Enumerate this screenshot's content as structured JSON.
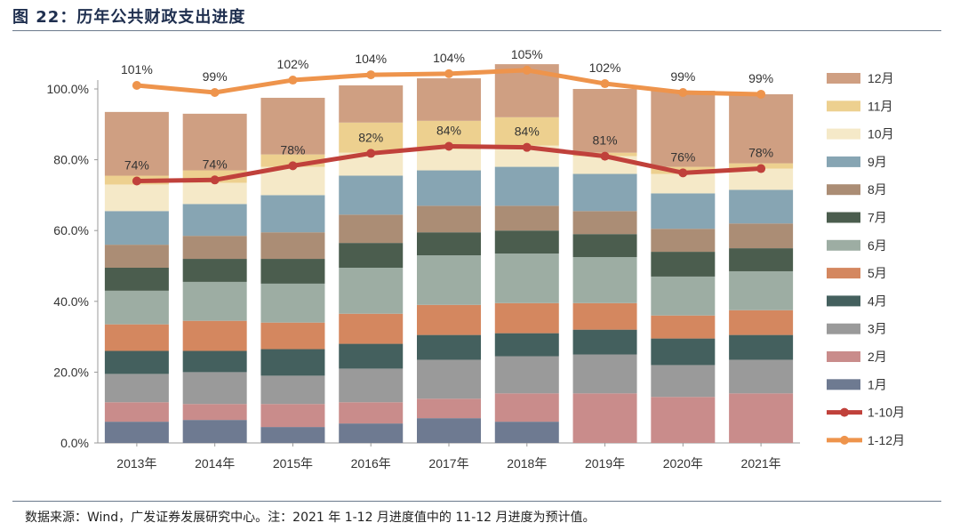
{
  "figure": {
    "title": "图 22：历年公共财政支出进度",
    "source": "数据来源：Wind，广发证券发展研究中心。注：2021 年 1-12 月进度值中的 11-12 月进度为预计值。"
  },
  "chart_data": {
    "type": "bar",
    "stacked": true,
    "title": "历年公共财政支出进度",
    "xlabel": "",
    "ylabel": "",
    "ylim": [
      0,
      1.05
    ],
    "yticks": [
      0,
      0.2,
      0.4,
      0.6,
      0.8,
      1.0
    ],
    "ytick_labels": [
      "0.0%",
      "20.0%",
      "40.0%",
      "60.0%",
      "80.0%",
      "100.0%"
    ],
    "categories": [
      "2013年",
      "2014年",
      "2015年",
      "2016年",
      "2017年",
      "2018年",
      "2019年",
      "2020年",
      "2021年"
    ],
    "series": [
      {
        "name": "1月",
        "color": "#6e7a91",
        "values": [
          0.06,
          0.065,
          0.045,
          0.055,
          0.07,
          0.06,
          0.0,
          0.0,
          0.0
        ]
      },
      {
        "name": "2月",
        "color": "#c98c8b",
        "values": [
          0.055,
          0.045,
          0.065,
          0.06,
          0.055,
          0.08,
          0.14,
          0.13,
          0.14
        ]
      },
      {
        "name": "3月",
        "color": "#9a9a9a",
        "values": [
          0.08,
          0.09,
          0.08,
          0.095,
          0.11,
          0.105,
          0.11,
          0.09,
          0.095
        ]
      },
      {
        "name": "4月",
        "color": "#44605e",
        "values": [
          0.065,
          0.06,
          0.075,
          0.07,
          0.07,
          0.065,
          0.07,
          0.075,
          0.07
        ]
      },
      {
        "name": "5月",
        "color": "#d4875f",
        "values": [
          0.075,
          0.085,
          0.075,
          0.085,
          0.085,
          0.085,
          0.075,
          0.065,
          0.07
        ]
      },
      {
        "name": "6月",
        "color": "#9dada3",
        "values": [
          0.095,
          0.11,
          0.11,
          0.13,
          0.14,
          0.14,
          0.13,
          0.11,
          0.11
        ]
      },
      {
        "name": "7月",
        "color": "#4b5d4e",
        "values": [
          0.065,
          0.065,
          0.07,
          0.07,
          0.065,
          0.065,
          0.065,
          0.07,
          0.065
        ]
      },
      {
        "name": "8月",
        "color": "#ab8d75",
        "values": [
          0.065,
          0.065,
          0.075,
          0.08,
          0.075,
          0.07,
          0.065,
          0.065,
          0.07
        ]
      },
      {
        "name": "9月",
        "color": "#87a5b3",
        "values": [
          0.095,
          0.09,
          0.105,
          0.11,
          0.1,
          0.11,
          0.105,
          0.1,
          0.095
        ]
      },
      {
        "name": "10月",
        "color": "#f5e9c8",
        "values": [
          0.075,
          0.06,
          0.08,
          0.065,
          0.06,
          0.06,
          0.05,
          0.055,
          0.06
        ]
      },
      {
        "name": "11月",
        "color": "#edd08f",
        "values": [
          0.025,
          0.035,
          0.035,
          0.085,
          0.08,
          0.08,
          0.01,
          0.02,
          0.015
        ]
      },
      {
        "name": "12月",
        "color": "#cf9f82",
        "values": [
          0.18,
          0.16,
          0.16,
          0.105,
          0.12,
          0.15,
          0.18,
          0.215,
          0.195
        ]
      }
    ],
    "lines": [
      {
        "name": "1-10月",
        "color": "#c0413b",
        "values": [
          0.74,
          0.743,
          0.783,
          0.818,
          0.838,
          0.835,
          0.81,
          0.763,
          0.775
        ],
        "labels": [
          "74%",
          "74%",
          "78%",
          "82%",
          "84%",
          "84%",
          "81%",
          "76%",
          "78%"
        ]
      },
      {
        "name": "1-12月",
        "color": "#ee944c",
        "values": [
          1.01,
          0.99,
          1.025,
          1.04,
          1.043,
          1.053,
          1.015,
          0.99,
          0.985
        ],
        "labels": [
          "101%",
          "99%",
          "102%",
          "104%",
          "104%",
          "105%",
          "102%",
          "99%",
          "99%"
        ]
      }
    ],
    "legend_position": "right",
    "grid": false
  }
}
